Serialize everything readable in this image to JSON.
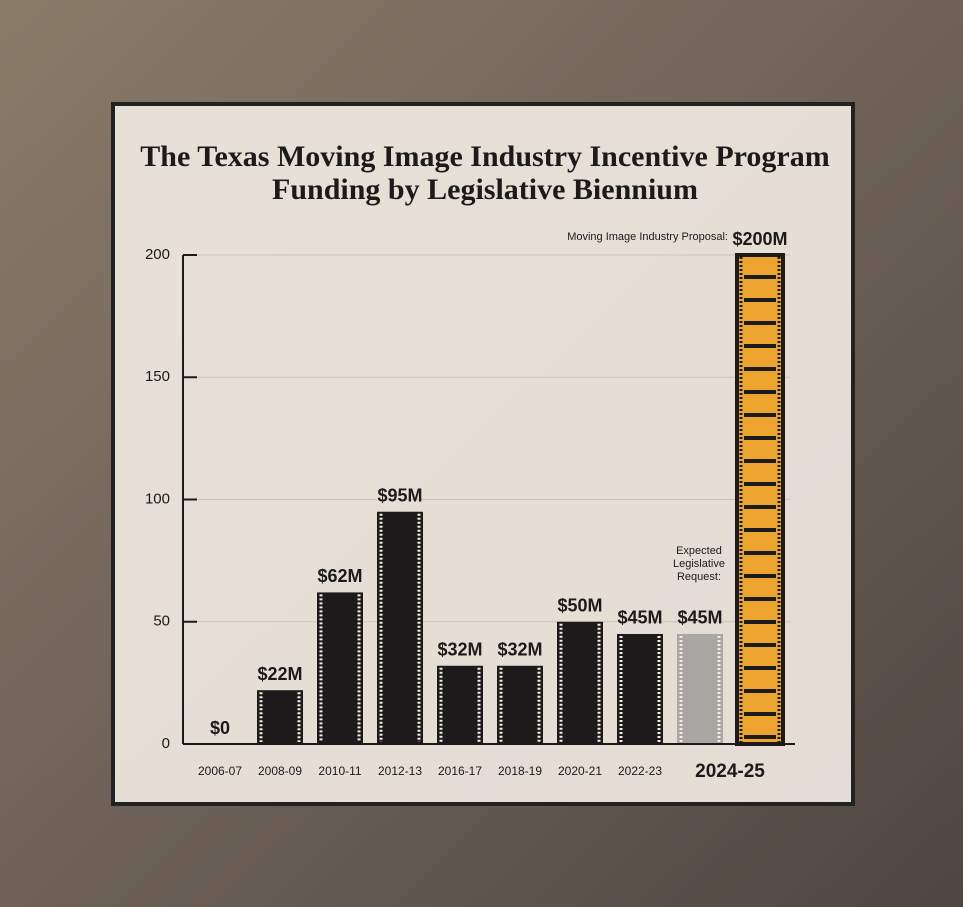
{
  "chart_data": {
    "type": "bar",
    "title": "The Texas Moving Image Industry Incentive Program Funding by Legislative Biennium",
    "categories": [
      "2006-07",
      "2008-09",
      "2010-11",
      "2012-13",
      "2016-17",
      "2018-19",
      "2020-21",
      "2022-23",
      "2024-25",
      null
    ],
    "values": [
      0,
      22,
      62,
      95,
      32,
      32,
      50,
      45,
      45,
      200
    ],
    "value_labels": [
      "$0",
      "$22M",
      "$62M",
      "$95M",
      "$32M",
      "$32M",
      "$50M",
      "$45M",
      "$45M",
      "$200M"
    ],
    "colors": [
      "#1c1a1a",
      "#1c1a1a",
      "#1c1a1a",
      "#1c1a1a",
      "#1c1a1a",
      "#1c1a1a",
      "#1c1a1a",
      "#1c1a1a",
      "#a9a6a3",
      "#eea52f"
    ],
    "annotations": [
      "Moving Image Industry Proposal:",
      "Expected Legislative Request:"
    ],
    "ylim": [
      0,
      200
    ],
    "yticks": [
      0,
      50,
      100,
      150,
      200
    ],
    "grid": true
  }
}
